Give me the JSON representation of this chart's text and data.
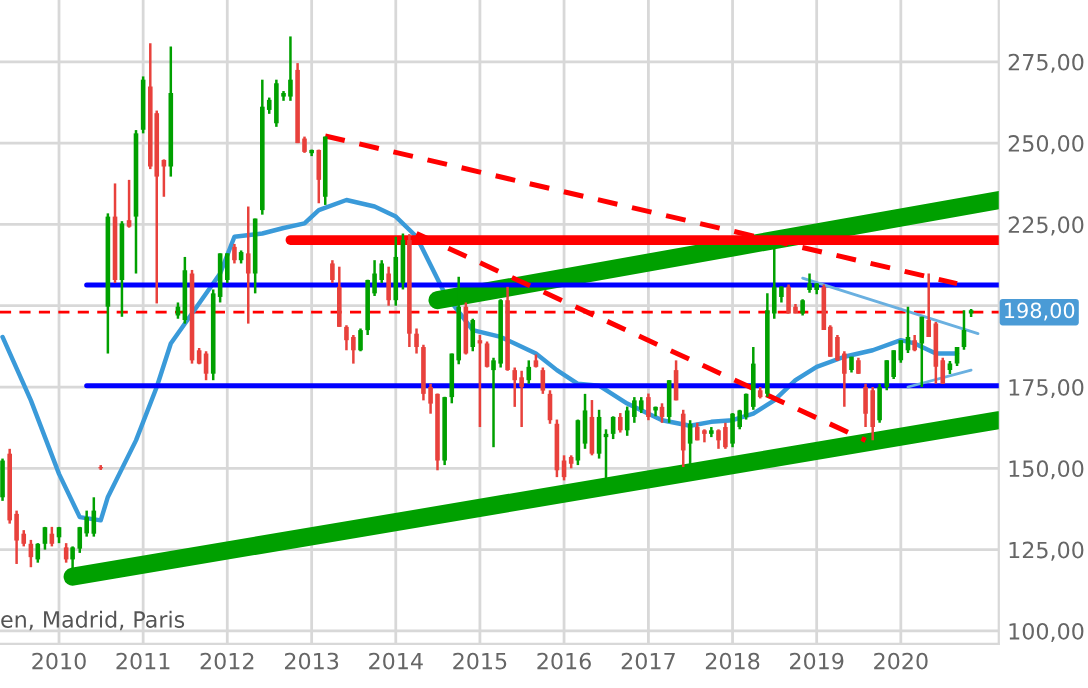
{
  "chart_data": {
    "type": "candlestick",
    "x": [
      "2009-05",
      "2009-06",
      "2009-07",
      "2009-08",
      "2009-09",
      "2009-10",
      "2009-11",
      "2009-12",
      "2010-01",
      "2010-02",
      "2010-03",
      "2010-04",
      "2010-05",
      "2010-06",
      "2010-07",
      "2010-08",
      "2010-09",
      "2010-10",
      "2010-11",
      "2010-12",
      "2011-01",
      "2011-02",
      "2011-03",
      "2011-04",
      "2011-05",
      "2011-06",
      "2011-07",
      "2011-08",
      "2011-09",
      "2011-10",
      "2011-11",
      "2011-12",
      "2012-01",
      "2012-02",
      "2012-03",
      "2012-04",
      "2012-05",
      "2012-06",
      "2012-07",
      "2012-08",
      "2012-09",
      "2012-10",
      "2012-11",
      "2012-12",
      "2013-01",
      "2013-02",
      "2013-03",
      "2013-04",
      "2013-05",
      "2013-06",
      "2013-07",
      "2013-08",
      "2013-09",
      "2013-10",
      "2013-11",
      "2013-12",
      "2014-01",
      "2014-02",
      "2014-03",
      "2014-04",
      "2014-05",
      "2014-06",
      "2014-07",
      "2014-08",
      "2014-09",
      "2014-10",
      "2014-11",
      "2014-12",
      "2015-01",
      "2015-02",
      "2015-03",
      "2015-04",
      "2015-05",
      "2015-06",
      "2015-07",
      "2015-08",
      "2015-09",
      "2015-10",
      "2015-11",
      "2015-12",
      "2016-01",
      "2016-02",
      "2016-03",
      "2016-04",
      "2016-05",
      "2016-06",
      "2016-07",
      "2016-08",
      "2016-09",
      "2016-10",
      "2016-11",
      "2016-12",
      "2017-01",
      "2017-02",
      "2017-03",
      "2017-04",
      "2017-05",
      "2017-06",
      "2017-07",
      "2017-08",
      "2017-09",
      "2017-10",
      "2017-11",
      "2017-12",
      "2018-01",
      "2018-02",
      "2018-03",
      "2018-04",
      "2018-05",
      "2018-06",
      "2018-07",
      "2018-08",
      "2018-09",
      "2018-10",
      "2018-11",
      "2018-12",
      "2019-01",
      "2019-02",
      "2019-03",
      "2019-04",
      "2019-05",
      "2019-06",
      "2019-07",
      "2019-08",
      "2019-09",
      "2019-10",
      "2019-11",
      "2019-12",
      "2020-01",
      "2020-02",
      "2020-03",
      "2020-04",
      "2020-05",
      "2020-06",
      "2020-07",
      "2020-08",
      "2020-09",
      "2020-10",
      "2020-11"
    ],
    "ohlc": [
      [
        141.1,
        153,
        140,
        152.4
      ],
      [
        154.5,
        156,
        133,
        134.0
      ],
      [
        136.0,
        137,
        120.6,
        127.8
      ],
      [
        129.9,
        131,
        126,
        126.8
      ],
      [
        126.8,
        128,
        119.6,
        122.7
      ],
      [
        122.0,
        127,
        121,
        126.8
      ],
      [
        126.8,
        132,
        125,
        131.9
      ],
      [
        129.9,
        132,
        126,
        126.8
      ],
      [
        128.8,
        132,
        127,
        131.9
      ],
      [
        125.7,
        127,
        121,
        122.0
      ],
      [
        122.0,
        126,
        117.5,
        125.7
      ],
      [
        125.3,
        132,
        124,
        131.9
      ],
      [
        130,
        137,
        129,
        135.0
      ],
      [
        129.9,
        141.1,
        129,
        137.0
      ],
      [
        150.4,
        151,
        149.5,
        150.0
      ],
      [
        199.7,
        228.4,
        185.3,
        227.4
      ],
      [
        227.4,
        237.6,
        207,
        207.9
      ],
      [
        207.9,
        226,
        196.6,
        225.3
      ],
      [
        226.3,
        238.7,
        224,
        224.3
      ],
      [
        227.4,
        254,
        209.9,
        253.0
      ],
      [
        254.1,
        270.5,
        253,
        269.5
      ],
      [
        267.4,
        280.7,
        242,
        242.8
      ],
      [
        259.2,
        260,
        200.7,
        239.7
      ],
      [
        244.8,
        245,
        233.5,
        242.8
      ],
      [
        242.8,
        279.7,
        239.7,
        265.4
      ],
      [
        197,
        201,
        196,
        199.7
      ],
      [
        195.6,
        215,
        194.5,
        210.9
      ],
      [
        209.9,
        211,
        182.2,
        183.2
      ],
      [
        186.3,
        187,
        182,
        182.2
      ],
      [
        185.3,
        186,
        177.1,
        179.1
      ],
      [
        179.1,
        205,
        177.1,
        203.8
      ],
      [
        202.7,
        216.1,
        201,
        216.1
      ],
      [
        207.9,
        216.1,
        207,
        216.1
      ],
      [
        218.1,
        219,
        213,
        214.0
      ],
      [
        214,
        217,
        213,
        216.5
      ],
      [
        216.1,
        230.5,
        194.5,
        209.9
      ],
      [
        209.9,
        226.8,
        203.8,
        226.8
      ],
      [
        229.4,
        269.5,
        228,
        261.2
      ],
      [
        260.2,
        264,
        259,
        263.3
      ],
      [
        256.1,
        269.5,
        255,
        268.4
      ],
      [
        264.3,
        266,
        263,
        265.4
      ],
      [
        264.3,
        282.8,
        263,
        269.5
      ],
      [
        272.5,
        274.6,
        250,
        250.0
      ],
      [
        251.4,
        252,
        247,
        247.3
      ],
      [
        246.9,
        248,
        246,
        247.9
      ],
      [
        247.9,
        248,
        231.5,
        238.7
      ],
      [
        233.5,
        252,
        231,
        252.0
      ],
      [
        213,
        214,
        207,
        207.9
      ],
      [
        205.8,
        212,
        193.5,
        193.5
      ],
      [
        193.5,
        194,
        186.3,
        189.4
      ],
      [
        190.4,
        191,
        182.2,
        186.3
      ],
      [
        186.3,
        193,
        186,
        192.5
      ],
      [
        192.5,
        208,
        191,
        207.9
      ],
      [
        203.8,
        214,
        203,
        209.9
      ],
      [
        207.9,
        214,
        207,
        213.0
      ],
      [
        209.9,
        212,
        200,
        201.7
      ],
      [
        201.7,
        221.2,
        200,
        215.0
      ],
      [
        207,
        222.2,
        205,
        220.2
      ],
      [
        220.2,
        222,
        187.3,
        191.4
      ],
      [
        191.4,
        193,
        185.3,
        187.3
      ],
      [
        187.3,
        188,
        170.9,
        172.9
      ],
      [
        175.0,
        176,
        166.8,
        169.9
      ],
      [
        172.9,
        173,
        149.4,
        152.4
      ],
      [
        152.4,
        172,
        151,
        171.9
      ],
      [
        171.9,
        185.3,
        170,
        185.3
      ],
      [
        183.2,
        208.9,
        182,
        199.7
      ],
      [
        199.7,
        201,
        185,
        185.3
      ],
      [
        187.3,
        196,
        186,
        195.6
      ],
      [
        189.4,
        191,
        162.7,
        188.4
      ],
      [
        188.4,
        189,
        181,
        181.2
      ],
      [
        180.2,
        184,
        156.5,
        183.2
      ],
      [
        182.2,
        202,
        181,
        201.7
      ],
      [
        201.7,
        205.8,
        180,
        180.2
      ],
      [
        180.2,
        181,
        168.9,
        177.1
      ],
      [
        178,
        180,
        162.7,
        175.0
      ],
      [
        177.1,
        183.2,
        176,
        181.2
      ],
      [
        183.2,
        185,
        181,
        181.2
      ],
      [
        180.2,
        181,
        172.9,
        173.9
      ],
      [
        172.9,
        174,
        163.7,
        164.8
      ],
      [
        163.7,
        165,
        147.3,
        149.4
      ],
      [
        152.4,
        154,
        146.3,
        147.3
      ],
      [
        153.5,
        154,
        150,
        151.4
      ],
      [
        152.4,
        165,
        151,
        164.8
      ],
      [
        157.6,
        172.9,
        156,
        167.8
      ],
      [
        165.8,
        171,
        154,
        154.5
      ],
      [
        154.5,
        168,
        153,
        165.8
      ],
      [
        159.6,
        162,
        146.3,
        160.6
      ],
      [
        160.6,
        166,
        159,
        165.8
      ],
      [
        165.8,
        167,
        161,
        161.7
      ],
      [
        161.7,
        169,
        160,
        167.8
      ],
      [
        165.8,
        171.9,
        164,
        170.9
      ],
      [
        168,
        171.9,
        167,
        170.9
      ],
      [
        171.9,
        173,
        164.8,
        165.8
      ],
      [
        167.8,
        169,
        166,
        168.9
      ],
      [
        168.9,
        170,
        164,
        165.8
      ],
      [
        165.8,
        177.1,
        164,
        177.1
      ],
      [
        180.2,
        183.2,
        170.9,
        170.9
      ],
      [
        166.8,
        168,
        150.4,
        155.5
      ],
      [
        157.6,
        164.8,
        150.4,
        163.7
      ],
      [
        162.7,
        164,
        158.6,
        158.6
      ],
      [
        161.7,
        162,
        158,
        160.6
      ],
      [
        160.6,
        162.7,
        159.6,
        161.7
      ],
      [
        161.7,
        162,
        156,
        158.6
      ],
      [
        162.7,
        164,
        156,
        156.5
      ],
      [
        157.6,
        167,
        156.5,
        166.8
      ],
      [
        162.7,
        168,
        162,
        167.8
      ],
      [
        165.8,
        173,
        165,
        172.9
      ],
      [
        168.9,
        187.3,
        168,
        182.2
      ],
      [
        174.0,
        175,
        171.5,
        171.9
      ],
      [
        172.9,
        203.8,
        172,
        198.6
      ],
      [
        197.6,
        218.1,
        196,
        205.8
      ],
      [
        202.7,
        206,
        201,
        205.8
      ],
      [
        205.8,
        206.5,
        197.6,
        197.6
      ],
      [
        199.7,
        200.5,
        197.6,
        197.6
      ],
      [
        197.6,
        202,
        197,
        201.7
      ],
      [
        204.8,
        209.9,
        204,
        206.8
      ],
      [
        204.8,
        207,
        203.5,
        206.8
      ],
      [
        205.8,
        206.5,
        192.5,
        192.5
      ],
      [
        193.5,
        194,
        184.3,
        184.3
      ],
      [
        190.4,
        191,
        183,
        183.2
      ],
      [
        185.3,
        186,
        168.9,
        179.1
      ],
      [
        180.2,
        184.3,
        179.5,
        184.3
      ],
      [
        183.2,
        184,
        179,
        179.1
      ],
      [
        175.0,
        176,
        162.7,
        166.8
      ],
      [
        174.0,
        175,
        158.6,
        162.7
      ],
      [
        164.8,
        176,
        164,
        175.0
      ],
      [
        175,
        183.2,
        174,
        183.2
      ],
      [
        178.1,
        186.3,
        177.5,
        186.3
      ],
      [
        183.2,
        189.4,
        182.5,
        189.4
      ],
      [
        186.3,
        199.7,
        185.5,
        190.4
      ],
      [
        189.4,
        191,
        186,
        186.3
      ],
      [
        188.4,
        196.6,
        175,
        196.6
      ],
      [
        195.6,
        209.9,
        190.4,
        190.4
      ],
      [
        194.5,
        195,
        176,
        181.2
      ],
      [
        183.2,
        184,
        176,
        176.0
      ],
      [
        180.2,
        183,
        179,
        182.2
      ],
      [
        182.2,
        187.3,
        181.5,
        187.3
      ],
      [
        187.3,
        198.6,
        186.5,
        192.5
      ],
      [
        197.6,
        199,
        196.5,
        198.6
      ]
    ],
    "colors": [
      "#00a000",
      "#e8413c",
      "#e8413c",
      "#e8413c",
      "#e8413c",
      "#00a000",
      "#00a000",
      "#e8413c",
      "#00a000",
      "#e8413c",
      "#00a000",
      "#00a000",
      "#00a000",
      "#00a000",
      "#e8413c",
      "#00a000",
      "#e8413c",
      "#00a000",
      "#e8413c",
      "#00a000",
      "#00a000",
      "#e8413c",
      "#e8413c",
      "#e8413c",
      "#00a000",
      "#00a000",
      "#00a000",
      "#e8413c",
      "#e8413c",
      "#e8413c",
      "#00a000",
      "#00a000",
      "#00a000",
      "#e8413c",
      "#00a000",
      "#e8413c",
      "#00a000",
      "#00a000",
      "#00a000",
      "#00a000",
      "#00a000",
      "#00a000",
      "#e8413c",
      "#e8413c",
      "#00a000",
      "#e8413c",
      "#00a000",
      "#e8413c",
      "#e8413c",
      "#e8413c",
      "#e8413c",
      "#00a000",
      "#00a000",
      "#00a000",
      "#00a000",
      "#e8413c",
      "#00a000",
      "#00a000",
      "#e8413c",
      "#e8413c",
      "#e8413c",
      "#e8413c",
      "#e8413c",
      "#00a000",
      "#00a000",
      "#00a000",
      "#e8413c",
      "#00a000",
      "#e8413c",
      "#e8413c",
      "#00a000",
      "#00a000",
      "#e8413c",
      "#e8413c",
      "#e8413c",
      "#00a000",
      "#e8413c",
      "#e8413c",
      "#e8413c",
      "#e8413c",
      "#e8413c",
      "#e8413c",
      "#00a000",
      "#00a000",
      "#e8413c",
      "#00a000",
      "#00a000",
      "#00a000",
      "#e8413c",
      "#00a000",
      "#00a000",
      "#00a000",
      "#e8413c",
      "#00a000",
      "#e8413c",
      "#00a000",
      "#e8413c",
      "#e8413c",
      "#00a000",
      "#e8413c",
      "#e8413c",
      "#00a000",
      "#e8413c",
      "#e8413c",
      "#00a000",
      "#00a000",
      "#00a000",
      "#00a000",
      "#e8413c",
      "#00a000",
      "#00a000",
      "#00a000",
      "#e8413c",
      "#e8413c",
      "#00a000",
      "#00a000",
      "#00a000",
      "#e8413c",
      "#e8413c",
      "#e8413c",
      "#e8413c",
      "#00a000",
      "#e8413c",
      "#e8413c",
      "#e8413c",
      "#00a000",
      "#00a000",
      "#00a000",
      "#00a000",
      "#00a000",
      "#e8413c",
      "#00a000",
      "#e8413c",
      "#e8413c",
      "#e8413c",
      "#00a000",
      "#00a000",
      "#00a000",
      "#00a000"
    ],
    "series": [
      {
        "type": "line",
        "color": "#3a9ad9",
        "x": [
          "2009-05",
          "2009-09",
          "2010-01",
          "2010-04",
          "2010-07",
          "2010-08",
          "2010-12",
          "2011-03",
          "2011-05",
          "2011-08",
          "2011-12",
          "2012-02",
          "2012-06",
          "2012-09",
          "2012-12",
          "2013-02",
          "2013-06",
          "2013-10",
          "2014-01",
          "2014-04",
          "2014-08",
          "2014-12",
          "2015-04",
          "2015-06",
          "2015-09",
          "2015-12",
          "2016-03",
          "2016-06",
          "2016-10",
          "2017-03",
          "2017-07",
          "2017-10",
          "2018-01",
          "2018-04",
          "2018-07",
          "2018-10",
          "2019-01",
          "2019-05",
          "2019-09",
          "2020-01",
          "2020-03",
          "2020-06",
          "2020-09"
        ],
        "values": [
          190.4,
          170.9,
          148.3,
          135,
          134,
          141.2,
          158.6,
          175,
          188.4,
          197.6,
          209.9,
          221.2,
          222.2,
          223.9,
          225.3,
          229.4,
          232.5,
          230.5,
          227.4,
          221.2,
          203.8,
          192.5,
          190.4,
          188.4,
          185.3,
          180.2,
          176,
          175.4,
          169.9,
          164.8,
          163.1,
          164.3,
          164.8,
          166.8,
          170.9,
          177.1,
          181.2,
          184.3,
          186.3,
          189.4,
          188.4,
          185.3,
          185.3
        ]
      },
      {
        "type": "line",
        "color": "#00a000",
        "x": [
          "2010-03",
          "2021-03"
        ],
        "values": [
          116.7,
          164.8
        ]
      },
      {
        "type": "line",
        "color": "#00a000",
        "x": [
          "2014-07",
          "2021-03"
        ],
        "values": [
          201.7,
          232.5
        ]
      },
      {
        "type": "line",
        "color": "#ff0000",
        "x": [
          "2012-10",
          "2021-03"
        ],
        "values": [
          220.2,
          220.2
        ]
      },
      {
        "type": "line",
        "color": "#0000ff",
        "x": [
          "2010-05",
          "2021-03"
        ],
        "values": [
          206.4,
          206.4
        ]
      },
      {
        "type": "line",
        "color": "#0000ff",
        "x": [
          "2010-05",
          "2021-03"
        ],
        "values": [
          175.4,
          175.4
        ]
      },
      {
        "type": "line",
        "color": "#ff0000",
        "line_style": "dashed",
        "x": [
          "2013-03",
          "2020-09"
        ],
        "values": [
          252.2,
          206.8
        ]
      },
      {
        "type": "line",
        "color": "#ff0000",
        "line_style": "dashed",
        "x": [
          "2014-04",
          "2019-08"
        ],
        "values": [
          222.2,
          158.6
        ]
      },
      {
        "type": "line",
        "color": "#6ab0e0",
        "x": [
          "2018-11",
          "2020-12"
        ],
        "values": [
          208.5,
          191.4
        ]
      },
      {
        "type": "line",
        "color": "#6ab0e0",
        "x": [
          "2020-02",
          "2020-11"
        ],
        "values": [
          175,
          180.2
        ]
      }
    ],
    "xlim": [
      "2009-04-20",
      "2021-03-01"
    ],
    "xticks": [
      {
        "value": "2010-01",
        "label": "2010"
      },
      {
        "value": "2011-01",
        "label": "2011"
      },
      {
        "value": "2012-01",
        "label": "2012"
      },
      {
        "value": "2013-01",
        "label": "2013"
      },
      {
        "value": "2014-01",
        "label": "2014"
      },
      {
        "value": "2015-01",
        "label": "2015"
      },
      {
        "value": "2016-01",
        "label": "2016"
      },
      {
        "value": "2017-01",
        "label": "2017"
      },
      {
        "value": "2018-01",
        "label": "2018"
      },
      {
        "value": "2019-01",
        "label": "2019"
      },
      {
        "value": "2020-01",
        "label": "2020"
      }
    ],
    "ylim": [
      96,
      294
    ],
    "yticks": [
      {
        "value": 100,
        "label": "100,00"
      },
      {
        "value": 125,
        "label": "125,00"
      },
      {
        "value": 150,
        "label": "150,00"
      },
      {
        "value": 175,
        "label": "175,00"
      },
      {
        "value": 200,
        "label": null
      },
      {
        "value": 225,
        "label": "225,00"
      },
      {
        "value": 250,
        "label": "250,00"
      },
      {
        "value": 275,
        "label": "275,00"
      }
    ],
    "ref_lines": [
      {
        "axis": "y",
        "value": 198,
        "label": "198,00",
        "color": "#ff0000",
        "line_style": "dashed"
      }
    ],
    "annotations": [
      "en, Madrid, Paris"
    ],
    "grid": true,
    "legend": false
  }
}
